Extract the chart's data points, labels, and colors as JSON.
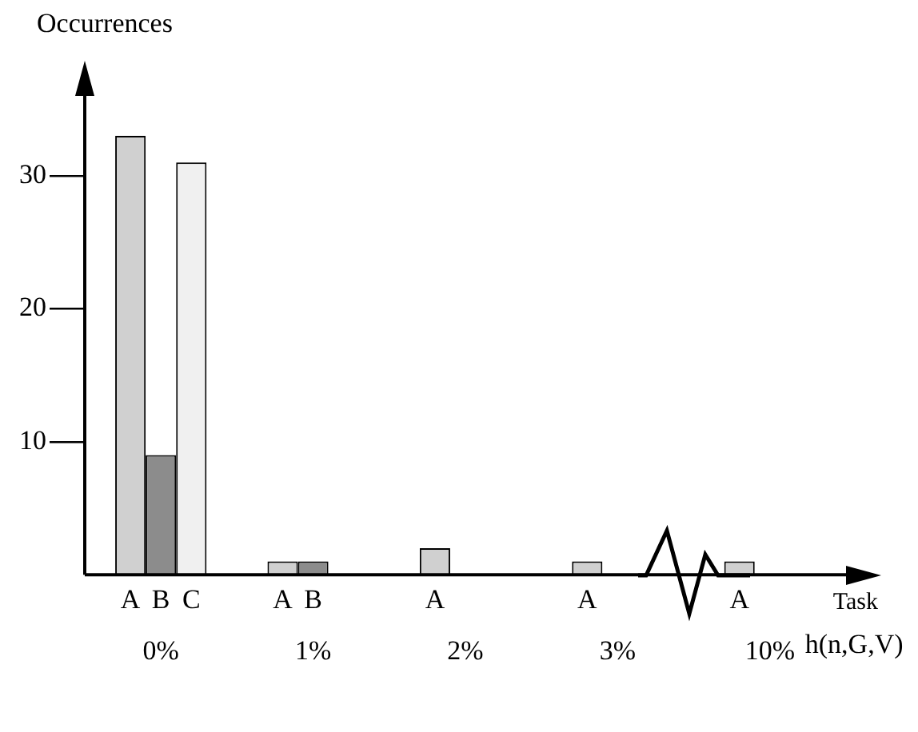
{
  "chart_data": {
    "type": "bar",
    "ylabel": "Occurrences",
    "xlabel": "Task",
    "categories": [
      "0%",
      "1%",
      "2%",
      "3%",
      "10%"
    ],
    "series": [
      {
        "name": "A",
        "color": "#d0d0d0",
        "values": [
          33,
          1,
          2,
          1,
          1
        ]
      },
      {
        "name": "B",
        "color": "#8c8c8c",
        "values": [
          9,
          1,
          null,
          null,
          null
        ]
      },
      {
        "name": "C",
        "color": "#f0f0f0",
        "values": [
          31,
          null,
          null,
          null,
          null
        ]
      }
    ],
    "ylim": [
      0,
      36
    ],
    "yticks": [
      10,
      20,
      30
    ],
    "annotations": [
      "h(n,G,V)"
    ]
  }
}
